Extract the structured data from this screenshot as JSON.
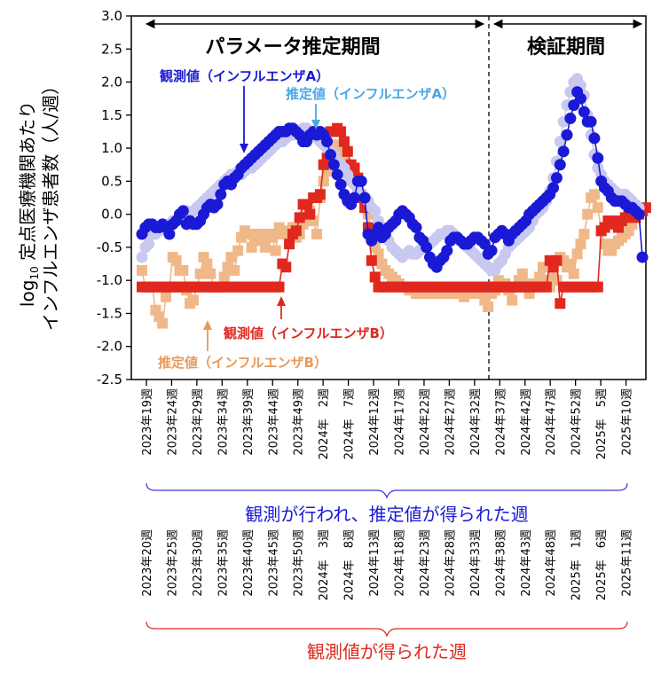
{
  "chart_data": {
    "type": "line",
    "ylabel_line1": "定点医療機関あたり",
    "ylabel_prefix": "log",
    "ylabel_sub": "10",
    "ylabel_line2": "インフルエンザ患者数（人/週）",
    "ylim": [
      -2.5,
      3.0
    ],
    "yticks": [
      "3.0",
      "2.5",
      "2.0",
      "1.5",
      "1.0",
      "0.5",
      "0.0",
      "-0.5",
      "-1.0",
      "-1.5",
      "-2.0",
      "-2.5"
    ],
    "period_labels": {
      "param": "パラメータ推定期間",
      "verify": "検証期間"
    },
    "week_labels_top": [
      "2023年19週",
      "2023年24週",
      "2023年29週",
      "2023年34週",
      "2023年39週",
      "2023年44週",
      "2023年49週",
      "2024年　2週",
      "2024年　7週",
      "2024年12週",
      "2024年17週",
      "2024年22週",
      "2024年27週",
      "2024年32週",
      "2024年37週",
      "2024年42週",
      "2024年47週",
      "2024年52週",
      "2025年　5週",
      "2025年10週"
    ],
    "week_labels_bottom": [
      "2023年20週",
      "2023年25週",
      "2023年30週",
      "2023年35週",
      "2023年40週",
      "2023年45週",
      "2023年50週",
      "2024年　3週",
      "2024年　8週",
      "2024年13週",
      "2024年18週",
      "2024年23週",
      "2024年28週",
      "2024年33週",
      "2024年38週",
      "2024年43週",
      "2024年48週",
      "2025年　1週",
      "2025年　6週",
      "2025年11週"
    ],
    "group_label_top": "観測が行われ、推定値が得られた週",
    "group_label_bottom": "観測値が得られた週",
    "annotations": {
      "obsA": "観測値（インフルエンザA）",
      "estA": "推定値（インフルエンザA）",
      "obsB": "観測値（インフルエンザB）",
      "estB": "推定値（インフルエンザB）"
    },
    "colors": {
      "obsA": "#1a1ad6",
      "estA": "#c8c8f0",
      "obsB": "#e0281e",
      "estB": "#f0b888",
      "annA": "#1a1ad6",
      "annEstA": "#4aa6e6",
      "annB": "#e0281e",
      "annEstB": "#e69a5a"
    },
    "series": [
      {
        "name": "観測値（インフルエンザA）",
        "key": "obsA",
        "values": [
          -0.3,
          -0.2,
          -0.15,
          -0.15,
          -0.2,
          -0.2,
          -0.15,
          -0.2,
          -0.3,
          -0.15,
          -0.1,
          0.0,
          0.05,
          -0.15,
          -0.1,
          -0.15,
          -0.15,
          -0.1,
          0.0,
          0.1,
          0.15,
          0.1,
          0.15,
          0.3,
          0.45,
          0.5,
          0.45,
          0.55,
          0.6,
          0.7,
          0.75,
          0.8,
          0.85,
          0.9,
          0.95,
          1.0,
          1.05,
          1.1,
          1.15,
          1.2,
          1.25,
          1.25,
          1.25,
          1.3,
          1.3,
          1.25,
          1.2,
          1.1,
          1.1,
          1.2,
          1.25,
          1.2,
          1.25,
          1.2,
          1.1,
          0.9,
          0.75,
          0.6,
          0.45,
          0.3,
          0.2,
          0.15,
          0.25,
          0.5,
          0.5,
          0.25,
          -0.3,
          -0.4,
          -0.3,
          -0.2,
          -0.35,
          -0.3,
          -0.2,
          -0.15,
          -0.1,
          0.0,
          0.05,
          0.0,
          -0.05,
          -0.15,
          -0.2,
          -0.35,
          -0.4,
          -0.5,
          -0.65,
          -0.75,
          -0.8,
          -0.7,
          -0.65,
          -0.55,
          -0.4,
          -0.35,
          -0.35,
          -0.4,
          -0.45,
          -0.45,
          -0.4,
          -0.35,
          -0.35,
          -0.4,
          -0.45,
          -0.6,
          -0.55,
          -0.35,
          -0.3,
          -0.25,
          -0.3,
          -0.4,
          -0.3,
          -0.25,
          -0.2,
          -0.15,
          -0.1,
          0.0,
          0.05,
          0.1,
          0.15,
          0.2,
          0.25,
          0.3,
          0.4,
          0.55,
          0.75,
          0.95,
          1.2,
          1.45,
          1.65,
          1.85,
          1.75,
          1.55,
          1.4,
          1.4,
          1.15,
          0.85,
          0.5,
          0.4,
          0.35,
          0.25,
          0.2,
          0.2,
          0.2,
          0.15,
          0.1,
          0.1,
          0.05,
          0.0,
          -0.65
        ]
      },
      {
        "name": "推定値（インフルエンザA）",
        "key": "estA",
        "values": [
          -0.65,
          -0.5,
          -0.45,
          -0.3,
          -0.3,
          -0.25,
          -0.2,
          -0.2,
          -0.15,
          -0.1,
          -0.1,
          -0.05,
          0.0,
          0.05,
          0.0,
          0.05,
          0.1,
          0.15,
          0.2,
          0.25,
          0.3,
          0.35,
          0.4,
          0.45,
          0.5,
          0.55,
          0.6,
          0.6,
          0.65,
          0.6,
          0.65,
          0.7,
          0.7,
          0.75,
          0.8,
          0.85,
          0.9,
          0.95,
          1.0,
          1.05,
          1.1,
          1.1,
          1.15,
          1.2,
          1.2,
          1.25,
          1.25,
          1.3,
          1.3,
          1.25,
          1.2,
          1.15,
          1.1,
          1.05,
          1.0,
          0.95,
          0.9,
          0.8,
          0.75,
          0.7,
          0.6,
          0.5,
          0.45,
          0.35,
          0.3,
          0.25,
          0.2,
          0.1,
          0.05,
          -0.1,
          -0.2,
          -0.3,
          -0.4,
          -0.5,
          -0.55,
          -0.6,
          -0.65,
          -0.6,
          -0.55,
          -0.6,
          -0.6,
          -0.55,
          -0.5,
          -0.5,
          -0.45,
          -0.4,
          -0.35,
          -0.3,
          -0.3,
          -0.25,
          -0.25,
          -0.3,
          -0.35,
          -0.4,
          -0.45,
          -0.5,
          -0.55,
          -0.6,
          -0.65,
          -0.7,
          -0.75,
          -0.8,
          -0.85,
          -0.85,
          -0.75,
          -0.7,
          -0.6,
          -0.5,
          -0.45,
          -0.4,
          -0.35,
          -0.3,
          -0.25,
          -0.2,
          -0.1,
          0.0,
          0.05,
          0.1,
          0.2,
          0.35,
          0.55,
          0.8,
          1.1,
          1.4,
          1.65,
          1.85,
          2.0,
          2.05,
          1.95,
          1.8,
          1.5,
          1.2,
          0.9,
          0.7,
          0.6,
          0.5,
          0.45,
          0.4,
          0.35,
          0.3,
          0.3,
          0.3,
          0.25,
          0.2,
          0.15,
          0.1
        ]
      },
      {
        "name": "観測値（インフルエンザB）",
        "key": "obsB",
        "values": [
          -1.1,
          -1.1,
          -1.1,
          -1.1,
          -1.1,
          -1.1,
          -1.1,
          -1.1,
          -1.1,
          -1.1,
          -1.1,
          -1.1,
          -1.1,
          -1.1,
          -1.1,
          -1.1,
          -1.1,
          -1.1,
          -1.1,
          -1.1,
          -1.1,
          -1.1,
          -1.1,
          -1.1,
          -1.1,
          -1.1,
          -1.1,
          -1.1,
          -1.1,
          -1.1,
          -1.1,
          -1.1,
          -1.1,
          -1.1,
          -1.1,
          -1.1,
          -1.1,
          -1.1,
          -1.1,
          -1.1,
          -1.1,
          -0.75,
          -0.8,
          -0.45,
          -0.3,
          -0.25,
          -0.05,
          0.15,
          0.15,
          0.0,
          0.25,
          0.25,
          0.3,
          0.75,
          0.85,
          1.25,
          1.25,
          1.3,
          1.25,
          1.1,
          0.95,
          0.75,
          0.7,
          0.55,
          0.25,
          0.1,
          -0.2,
          -0.7,
          -0.95,
          -1.1,
          -1.1,
          -1.1,
          -1.1,
          -1.1,
          -1.1,
          -1.1,
          -1.1,
          -1.1,
          -1.1,
          -1.1,
          -1.1,
          -1.1,
          -1.1,
          -1.1,
          -1.1,
          -1.1,
          -1.1,
          -1.1,
          -1.1,
          -1.1,
          -1.1,
          -1.1,
          -1.1,
          -1.1,
          -1.1,
          -1.1,
          -1.1,
          -1.1,
          -1.1,
          -1.1,
          -1.1,
          -1.1,
          -1.1,
          -1.1,
          -1.1,
          -1.1,
          -1.1,
          -1.1,
          -1.1,
          -1.1,
          -1.1,
          -1.1,
          -1.1,
          -1.1,
          -1.1,
          -1.1,
          -1.1,
          -1.1,
          -1.1,
          -0.7,
          -0.8,
          -0.7,
          -1.35,
          -1.1,
          -1.1,
          -1.1,
          -1.1,
          -1.1,
          -1.1,
          -1.1,
          -1.1,
          -1.1,
          -1.1,
          -1.1,
          -0.25,
          -0.2,
          -0.1,
          -0.1,
          -0.15,
          -0.2,
          -0.1,
          -0.05,
          0.0,
          0.05,
          -0.05,
          0.0,
          0.05,
          0.1
        ]
      },
      {
        "name": "推定値（インフルエンザB）",
        "key": "estB",
        "values": [
          -0.85,
          -1.1,
          -1.1,
          -1.1,
          -1.45,
          -1.55,
          -1.65,
          -1.25,
          -1.1,
          -0.65,
          -0.7,
          -0.85,
          -0.85,
          -1.15,
          -1.35,
          -1.3,
          -1.1,
          -0.9,
          -0.65,
          -0.75,
          -0.9,
          -1.1,
          -1.1,
          -1.1,
          -0.95,
          -0.8,
          -0.65,
          -0.85,
          -0.55,
          -0.35,
          -0.25,
          -0.3,
          -0.5,
          -0.4,
          -0.3,
          -0.4,
          -0.5,
          -0.3,
          -0.35,
          -0.55,
          -0.2,
          -0.3,
          -0.3,
          -0.25,
          -0.2,
          -0.35,
          -0.3,
          -0.15,
          0.0,
          0.05,
          -0.1,
          -0.3,
          0.25,
          0.5,
          0.65,
          0.75,
          0.7,
          1.05,
          0.9,
          0.8,
          0.75,
          0.6,
          0.5,
          0.45,
          0.3,
          0.2,
          0.0,
          -0.3,
          -0.5,
          -0.6,
          -0.75,
          -0.85,
          -0.9,
          -0.95,
          -1.0,
          -1.05,
          -1.1,
          -1.1,
          -1.15,
          -1.1,
          -1.2,
          -1.15,
          -1.2,
          -1.1,
          -1.2,
          -1.15,
          -1.1,
          -1.2,
          -1.15,
          -1.1,
          -1.2,
          -1.15,
          -1.2,
          -1.1,
          -1.25,
          -1.15,
          -1.2,
          -1.1,
          -1.2,
          -1.15,
          -1.3,
          -1.4,
          -1.2,
          -1.15,
          -1.0,
          -1.1,
          -1.05,
          -1.15,
          -1.3,
          -1.1,
          -1.0,
          -0.9,
          -1.05,
          -1.2,
          -1.05,
          -1.1,
          -0.95,
          -0.8,
          -1.0,
          -1.1,
          -0.85,
          -1.0,
          -0.65,
          -0.7,
          -0.8,
          -0.75,
          -0.9,
          -0.6,
          -0.45,
          -0.3,
          0.0,
          0.25,
          0.3,
          0.1,
          -0.25,
          -0.45,
          -0.55,
          -0.55,
          -0.45,
          -0.4,
          -0.35,
          -0.3,
          -0.25,
          -0.15,
          -0.05,
          0.05
        ]
      }
    ]
  }
}
